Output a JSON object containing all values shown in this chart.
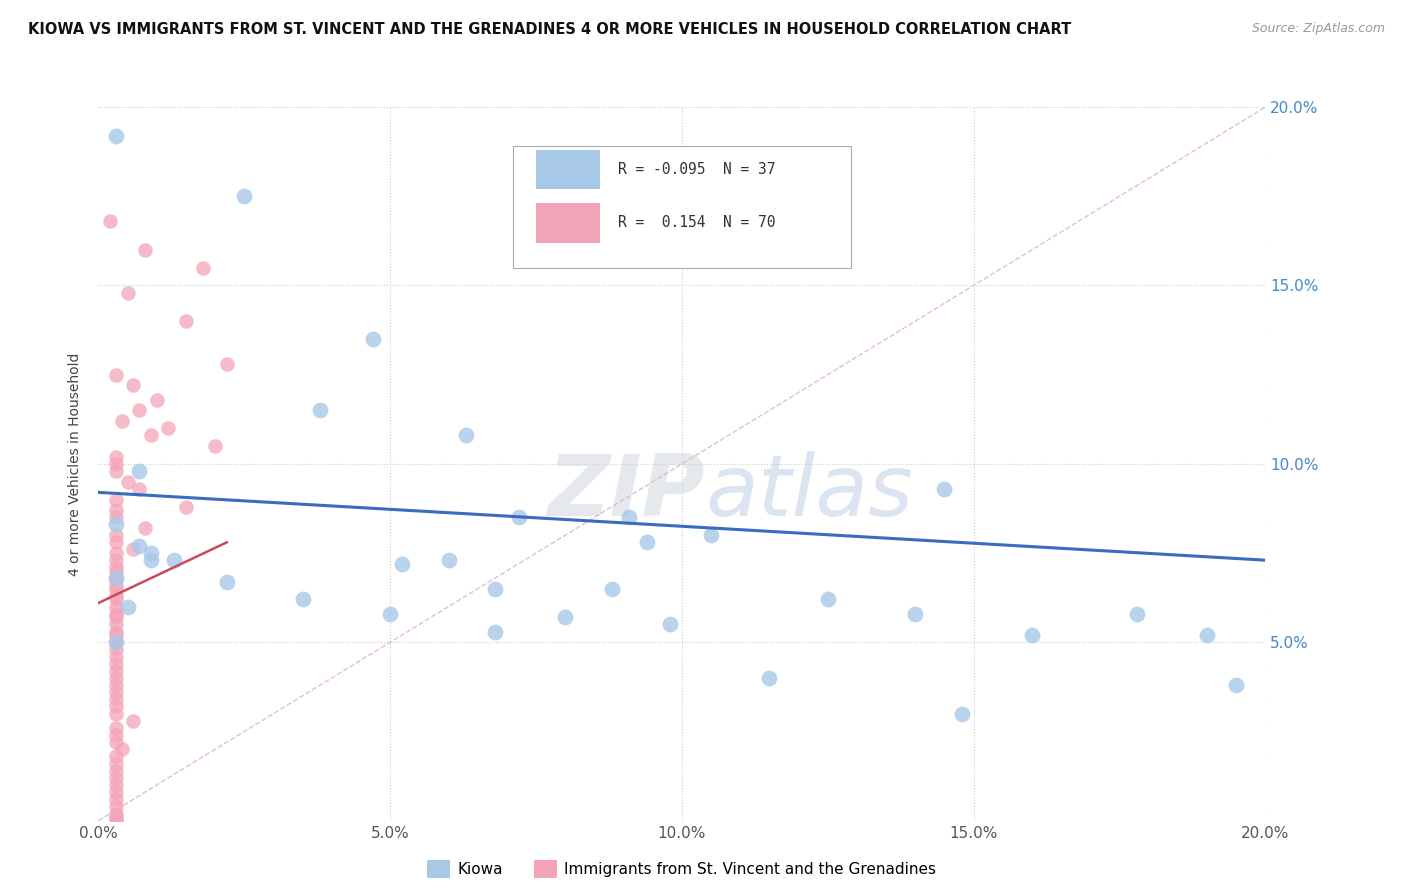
{
  "title": "KIOWA VS IMMIGRANTS FROM ST. VINCENT AND THE GRENADINES 4 OR MORE VEHICLES IN HOUSEHOLD CORRELATION CHART",
  "source": "Source: ZipAtlas.com",
  "ylabel": "4 or more Vehicles in Household",
  "xmin": 0.0,
  "xmax": 0.2,
  "ymin": 0.0,
  "ymax": 0.2,
  "x_tick_vals": [
    0.0,
    0.05,
    0.1,
    0.15,
    0.2
  ],
  "y_tick_vals": [
    0.05,
    0.1,
    0.15,
    0.2
  ],
  "legend_entries": [
    {
      "label": "R = -0.095  N = 37",
      "color": "#a8c8e8"
    },
    {
      "label": "R =  0.154  N = 70",
      "color": "#f4a4b8"
    }
  ],
  "legend_labels": [
    "Kiowa",
    "Immigrants from St. Vincent and the Grenadines"
  ],
  "kiowa_color": "#a8c8e8",
  "immigrant_color": "#f4a4b8",
  "trend_kiowa_color": "#3a6bbf",
  "trend_immigrant_color": "#c84860",
  "diagonal_color": "#e0b0b8",
  "watermark_zip": "ZIP",
  "watermark_atlas": "atlas",
  "kiowa_points": [
    [
      0.003,
      0.192
    ],
    [
      0.025,
      0.175
    ],
    [
      0.047,
      0.135
    ],
    [
      0.038,
      0.115
    ],
    [
      0.063,
      0.108
    ],
    [
      0.007,
      0.098
    ],
    [
      0.072,
      0.085
    ],
    [
      0.091,
      0.085
    ],
    [
      0.003,
      0.083
    ],
    [
      0.105,
      0.08
    ],
    [
      0.094,
      0.078
    ],
    [
      0.007,
      0.077
    ],
    [
      0.009,
      0.075
    ],
    [
      0.009,
      0.073
    ],
    [
      0.013,
      0.073
    ],
    [
      0.052,
      0.072
    ],
    [
      0.003,
      0.068
    ],
    [
      0.022,
      0.067
    ],
    [
      0.068,
      0.065
    ],
    [
      0.125,
      0.062
    ],
    [
      0.005,
      0.06
    ],
    [
      0.178,
      0.058
    ],
    [
      0.098,
      0.055
    ],
    [
      0.068,
      0.053
    ],
    [
      0.19,
      0.052
    ],
    [
      0.003,
      0.05
    ],
    [
      0.06,
      0.073
    ],
    [
      0.145,
      0.093
    ],
    [
      0.088,
      0.065
    ],
    [
      0.035,
      0.062
    ],
    [
      0.05,
      0.058
    ],
    [
      0.14,
      0.058
    ],
    [
      0.115,
      0.04
    ],
    [
      0.195,
      0.038
    ],
    [
      0.148,
      0.03
    ],
    [
      0.08,
      0.057
    ],
    [
      0.16,
      0.052
    ]
  ],
  "immigrant_points": [
    [
      0.002,
      0.168
    ],
    [
      0.008,
      0.16
    ],
    [
      0.018,
      0.155
    ],
    [
      0.005,
      0.148
    ],
    [
      0.015,
      0.14
    ],
    [
      0.022,
      0.128
    ],
    [
      0.003,
      0.125
    ],
    [
      0.006,
      0.122
    ],
    [
      0.01,
      0.118
    ],
    [
      0.007,
      0.115
    ],
    [
      0.004,
      0.112
    ],
    [
      0.012,
      0.11
    ],
    [
      0.009,
      0.108
    ],
    [
      0.02,
      0.105
    ],
    [
      0.003,
      0.102
    ],
    [
      0.003,
      0.1
    ],
    [
      0.003,
      0.098
    ],
    [
      0.005,
      0.095
    ],
    [
      0.007,
      0.093
    ],
    [
      0.003,
      0.09
    ],
    [
      0.015,
      0.088
    ],
    [
      0.003,
      0.087
    ],
    [
      0.003,
      0.085
    ],
    [
      0.008,
      0.082
    ],
    [
      0.003,
      0.08
    ],
    [
      0.003,
      0.078
    ],
    [
      0.006,
      0.076
    ],
    [
      0.003,
      0.075
    ],
    [
      0.003,
      0.073
    ],
    [
      0.003,
      0.071
    ],
    [
      0.003,
      0.07
    ],
    [
      0.003,
      0.068
    ],
    [
      0.003,
      0.066
    ],
    [
      0.003,
      0.065
    ],
    [
      0.003,
      0.063
    ],
    [
      0.003,
      0.062
    ],
    [
      0.003,
      0.06
    ],
    [
      0.003,
      0.058
    ],
    [
      0.003,
      0.057
    ],
    [
      0.003,
      0.055
    ],
    [
      0.003,
      0.053
    ],
    [
      0.003,
      0.052
    ],
    [
      0.003,
      0.05
    ],
    [
      0.003,
      0.048
    ],
    [
      0.003,
      0.046
    ],
    [
      0.003,
      0.044
    ],
    [
      0.003,
      0.042
    ],
    [
      0.003,
      0.04
    ],
    [
      0.003,
      0.038
    ],
    [
      0.003,
      0.036
    ],
    [
      0.003,
      0.034
    ],
    [
      0.003,
      0.032
    ],
    [
      0.003,
      0.03
    ],
    [
      0.006,
      0.028
    ],
    [
      0.003,
      0.026
    ],
    [
      0.003,
      0.024
    ],
    [
      0.003,
      0.022
    ],
    [
      0.004,
      0.02
    ],
    [
      0.003,
      0.018
    ],
    [
      0.003,
      0.016
    ],
    [
      0.003,
      0.014
    ],
    [
      0.003,
      0.012
    ],
    [
      0.003,
      0.01
    ],
    [
      0.003,
      0.008
    ],
    [
      0.003,
      0.006
    ],
    [
      0.003,
      0.004
    ],
    [
      0.003,
      0.002
    ],
    [
      0.003,
      0.001
    ],
    [
      0.003,
      0.0
    ],
    [
      0.003,
      0.0
    ]
  ],
  "kiowa_trend_x": [
    0.0,
    0.2
  ],
  "kiowa_trend_y": [
    0.092,
    0.073
  ],
  "immigrant_trend_x": [
    0.0,
    0.022
  ],
  "immigrant_trend_y": [
    0.061,
    0.078
  ]
}
